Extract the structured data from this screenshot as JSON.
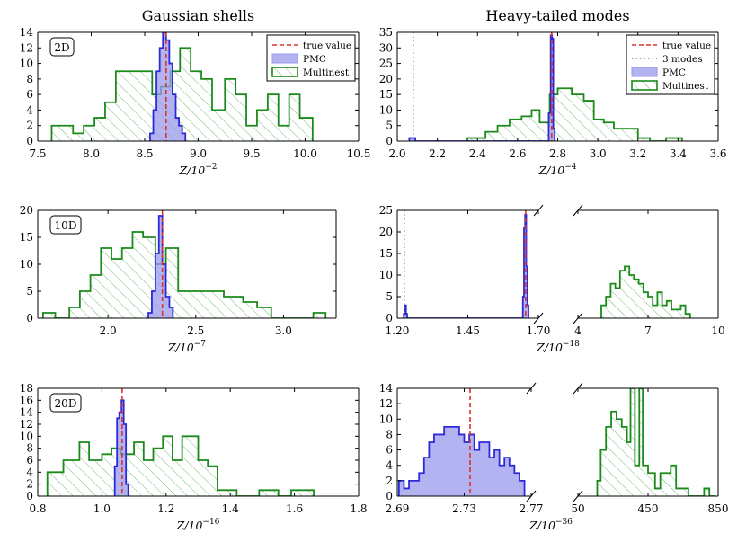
{
  "colors": {
    "multinest": "#1a8a1a",
    "pmc_edge": "#2b2bd6",
    "pmc_fill": "#9999ee",
    "true_value": "#e0312b",
    "modes": "#888888"
  },
  "chart_data": [
    {
      "id": "gauss-2d",
      "type": "histogram",
      "title": "Gaussian shells",
      "dim_label": "2D",
      "xlabel": "Z/10",
      "xlabel_exp": "−2",
      "xlim": [
        7.5,
        10.5
      ],
      "xticks": [
        7.5,
        8.0,
        8.5,
        9.0,
        9.5,
        10.0,
        10.5
      ],
      "xticklabels": [
        "7.5",
        "8.0",
        "8.5",
        "9.0",
        "9.5",
        "10.0",
        "10.5"
      ],
      "ylim": [
        0,
        14
      ],
      "yticks": [
        0,
        2,
        4,
        6,
        8,
        10,
        12,
        14
      ],
      "true_value": 8.7,
      "legend": [
        "true value",
        "PMC",
        "Multinest"
      ],
      "multinest": {
        "edges": [
          7.63,
          7.83,
          7.93,
          8.03,
          8.13,
          8.23,
          8.33,
          8.45,
          8.57,
          8.65,
          8.74,
          8.83,
          8.93,
          9.03,
          9.13,
          9.25,
          9.35,
          9.45,
          9.55,
          9.65,
          9.75,
          9.85,
          9.95,
          10.07
        ],
        "counts": [
          2,
          1,
          2,
          3,
          5,
          9,
          9,
          9,
          6,
          7,
          9,
          12,
          9,
          8,
          4,
          8,
          6,
          2,
          4,
          6,
          2,
          6,
          3
        ]
      },
      "pmc": {
        "edges": [
          8.55,
          8.58,
          8.61,
          8.64,
          8.67,
          8.7,
          8.73,
          8.76,
          8.79,
          8.82,
          8.85,
          8.88
        ],
        "counts": [
          1,
          4,
          9,
          12,
          14,
          13,
          10,
          6,
          3,
          2,
          1
        ]
      }
    },
    {
      "id": "heavy-2d",
      "type": "histogram",
      "title": "Heavy-tailed modes",
      "xlabel": "Z/10",
      "xlabel_exp": "−4",
      "xlim": [
        2.0,
        3.6
      ],
      "xticks": [
        2.0,
        2.2,
        2.4,
        2.6,
        2.8,
        3.0,
        3.2,
        3.4,
        3.6
      ],
      "xticklabels": [
        "2.0",
        "2.2",
        "2.4",
        "2.6",
        "2.8",
        "3.0",
        "3.2",
        "3.4",
        "3.6"
      ],
      "ylim": [
        0,
        35
      ],
      "yticks": [
        0,
        5,
        10,
        15,
        20,
        25,
        30,
        35
      ],
      "true_value": 2.77,
      "three_modes": 2.08,
      "legend": [
        "true value",
        "3 modes",
        "PMC",
        "Multinest"
      ],
      "multinest": {
        "edges": [
          2.35,
          2.44,
          2.5,
          2.56,
          2.62,
          2.67,
          2.71,
          2.76,
          2.8,
          2.87,
          2.93,
          2.98,
          3.03,
          3.08,
          3.13,
          3.2,
          3.26,
          3.34,
          3.42
        ],
        "counts": [
          1,
          3,
          5,
          7,
          8,
          10,
          6,
          15,
          17,
          15,
          13,
          7,
          6,
          4,
          4,
          1,
          0,
          1
        ]
      },
      "pmc": {
        "edges": [
          2.06,
          2.09,
          2.755,
          2.765,
          2.772,
          2.778,
          2.785
        ],
        "counts": [
          1,
          0,
          9,
          34,
          33,
          4
        ]
      }
    },
    {
      "id": "gauss-10d",
      "type": "histogram",
      "dim_label": "10D",
      "xlabel": "Z/10",
      "xlabel_exp": "−7",
      "xlim": [
        1.6,
        3.3
      ],
      "xticks": [
        2.0,
        2.5,
        3.0
      ],
      "xticklabels": [
        "2.0",
        "2.5",
        "3.0"
      ],
      "ylim": [
        0,
        20
      ],
      "yticks": [
        0,
        5,
        10,
        15,
        20
      ],
      "true_value": 2.31,
      "multinest": {
        "edges": [
          1.63,
          1.7,
          1.78,
          1.84,
          1.9,
          1.96,
          2.02,
          2.08,
          2.14,
          2.2,
          2.27,
          2.33,
          2.4,
          2.48,
          2.56,
          2.66,
          2.77,
          2.85,
          2.93,
          3.01,
          3.17,
          3.24
        ],
        "counts": [
          1,
          0,
          2,
          5,
          8,
          13,
          11,
          13,
          16,
          15,
          10,
          13,
          5,
          5,
          5,
          4,
          3,
          2,
          0,
          0,
          1
        ]
      },
      "pmc": {
        "edges": [
          2.23,
          2.25,
          2.27,
          2.29,
          2.31,
          2.33,
          2.35,
          2.37
        ],
        "counts": [
          1,
          5,
          12,
          19,
          10,
          4,
          2
        ]
      }
    },
    {
      "id": "heavy-10d-left",
      "type": "histogram",
      "xlabel": "Z/10",
      "xlabel_exp": "−18",
      "xlim": [
        1.2,
        1.7
      ],
      "xticks": [
        1.2,
        1.45,
        1.7
      ],
      "xticklabels": [
        "1.20",
        "1.45",
        "1.70"
      ],
      "ylim": [
        0,
        25
      ],
      "yticks": [
        0,
        5,
        10,
        15,
        20,
        25
      ],
      "true_value": 1.655,
      "three_modes": 1.225,
      "pmc": {
        "edges": [
          1.223,
          1.227,
          1.231,
          1.235,
          1.645,
          1.649,
          1.653,
          1.657,
          1.661,
          1.665
        ],
        "counts": [
          1,
          3,
          1,
          0,
          5,
          21,
          24,
          12,
          3
        ]
      }
    },
    {
      "id": "heavy-10d-right",
      "type": "histogram",
      "xlim": [
        4,
        10
      ],
      "xticks": [
        4,
        7,
        10
      ],
      "xticklabels": [
        "4",
        "7",
        "10"
      ],
      "ylim": [
        0,
        25
      ],
      "multinest": {
        "edges": [
          5.0,
          5.2,
          5.4,
          5.6,
          5.8,
          6.0,
          6.2,
          6.4,
          6.6,
          6.8,
          7.0,
          7.2,
          7.4,
          7.6,
          7.8,
          8.0,
          8.2,
          8.4,
          8.6,
          8.8
        ],
        "counts": [
          3,
          5,
          8,
          7,
          11,
          12,
          10,
          9,
          8,
          6,
          5,
          3,
          6,
          3,
          4,
          2,
          2,
          3,
          1
        ]
      }
    },
    {
      "id": "gauss-20d",
      "type": "histogram",
      "dim_label": "20D",
      "xlabel": "Z/10",
      "xlabel_exp": "−16",
      "xlim": [
        0.8,
        1.8
      ],
      "xticks": [
        0.8,
        1.0,
        1.2,
        1.4,
        1.6,
        1.8
      ],
      "xticklabels": [
        "0.8",
        "1.0",
        "1.2",
        "1.4",
        "1.6",
        "1.8"
      ],
      "ylim": [
        0,
        18
      ],
      "yticks": [
        0,
        2,
        4,
        6,
        8,
        10,
        12,
        14,
        16,
        18
      ],
      "true_value": 1.063,
      "multinest": {
        "edges": [
          0.83,
          0.88,
          0.93,
          0.96,
          1.0,
          1.03,
          1.06,
          1.1,
          1.13,
          1.16,
          1.19,
          1.22,
          1.25,
          1.3,
          1.33,
          1.36,
          1.42,
          1.49,
          1.55,
          1.59,
          1.66
        ],
        "counts": [
          4,
          6,
          9,
          6,
          7,
          8,
          7,
          9,
          6,
          8,
          10,
          6,
          10,
          6,
          5,
          1,
          0,
          1,
          0,
          1
        ]
      },
      "pmc": {
        "edges": [
          1.04,
          1.047,
          1.054,
          1.061,
          1.068,
          1.075,
          1.082
        ],
        "counts": [
          5,
          13,
          14,
          16,
          12,
          2
        ]
      }
    },
    {
      "id": "heavy-20d-left",
      "type": "histogram",
      "xlabel": "Z/10",
      "xlabel_exp": "−36",
      "xlim": [
        2.69,
        2.77
      ],
      "xticks": [
        2.69,
        2.73,
        2.77
      ],
      "xticklabels": [
        "2.69",
        "2.73",
        "2.77"
      ],
      "ylim": [
        0,
        14
      ],
      "yticks": [
        0,
        2,
        4,
        6,
        8,
        10,
        12,
        14
      ],
      "true_value": 2.7335,
      "pmc": {
        "edges": [
          2.691,
          2.694,
          2.697,
          2.7,
          2.703,
          2.706,
          2.709,
          2.712,
          2.715,
          2.718,
          2.721,
          2.724,
          2.727,
          2.73,
          2.733,
          2.736,
          2.739,
          2.742,
          2.745,
          2.748,
          2.751,
          2.754,
          2.757,
          2.76,
          2.763,
          2.766
        ],
        "counts": [
          2,
          1,
          2,
          2,
          3,
          5,
          7,
          8,
          8,
          9,
          9,
          9,
          8,
          7,
          8,
          6,
          7,
          7,
          5,
          6,
          4,
          5,
          4,
          3,
          2
        ]
      }
    },
    {
      "id": "heavy-20d-right",
      "type": "histogram",
      "xlim": [
        50,
        850
      ],
      "xticks": [
        50,
        450,
        850
      ],
      "xticklabels": [
        "50",
        "450",
        "850"
      ],
      "ylim": [
        0,
        14
      ],
      "multinest": {
        "edges": [
          160,
          180,
          210,
          240,
          270,
          300,
          330,
          350,
          375,
          400,
          420,
          450,
          490,
          520,
          550,
          580,
          610,
          640,
          680,
          730,
          770,
          800,
          830
        ],
        "counts": [
          2,
          6,
          9,
          11,
          10,
          9,
          7,
          14,
          4,
          14,
          4,
          3,
          1,
          3,
          3,
          4,
          1,
          1,
          0,
          0,
          1,
          0
        ]
      }
    }
  ]
}
